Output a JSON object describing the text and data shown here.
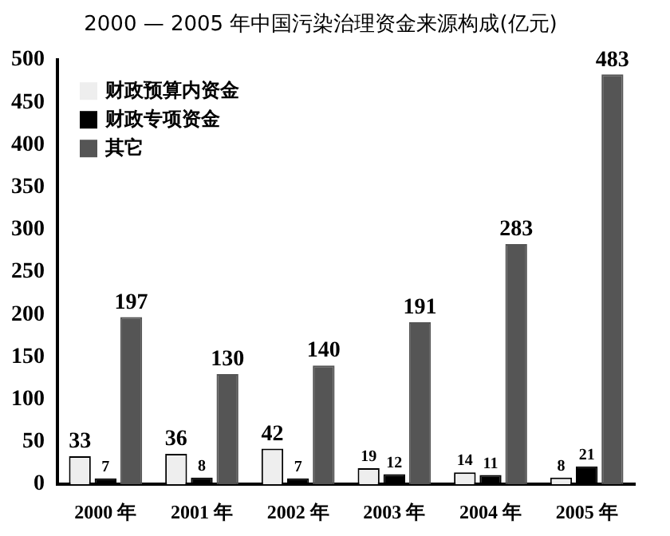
{
  "chart_data": {
    "type": "bar",
    "title": "2000 — 2005 年中国污染治理资金来源构成(亿元)",
    "categories": [
      "2000 年",
      "2001 年",
      "2002 年",
      "2003 年",
      "2004 年",
      "2005 年"
    ],
    "series": [
      {
        "name": "财政预算内资金",
        "color": "#eeeeee",
        "values": [
          33,
          36,
          42,
          19,
          14,
          8
        ]
      },
      {
        "name": "财政专项资金",
        "color": "#000000",
        "values": [
          7,
          8,
          7,
          12,
          11,
          21
        ]
      },
      {
        "name": "其它",
        "color": "#555555",
        "values": [
          197,
          130,
          140,
          191,
          283,
          483
        ]
      }
    ],
    "ylim": [
      0,
      500
    ],
    "yticks": [
      0,
      50,
      100,
      150,
      200,
      250,
      300,
      350,
      400,
      450,
      500
    ],
    "grid": false,
    "legend": "top left",
    "data_labels": true
  }
}
